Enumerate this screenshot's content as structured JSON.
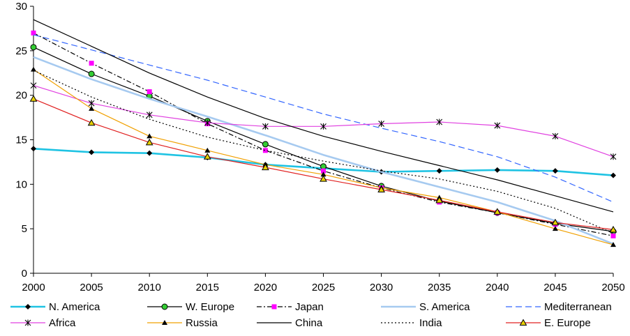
{
  "chart_data": {
    "type": "line",
    "title": "",
    "xlabel": "",
    "ylabel": "",
    "x": [
      2000,
      2005,
      2010,
      2015,
      2020,
      2025,
      2030,
      2035,
      2040,
      2045,
      2050
    ],
    "xlim": [
      2000,
      2050
    ],
    "ylim": [
      0,
      30
    ],
    "yticks": [
      0,
      5,
      10,
      15,
      20,
      25,
      30
    ],
    "grid": false,
    "legend_position": "bottom",
    "series": [
      {
        "name": "N. America",
        "color": "#1FC3E3",
        "dash": "solid",
        "marker": "diamond",
        "values": [
          14.0,
          13.6,
          13.5,
          13.0,
          12.2,
          11.8,
          11.4,
          11.5,
          11.6,
          11.5,
          11.0
        ]
      },
      {
        "name": "W. Europe",
        "color": "#000000",
        "markerFill": "#33CC33",
        "dash": "solid",
        "marker": "circle",
        "values": [
          25.4,
          22.4,
          19.9,
          17.1,
          14.5,
          12.0,
          9.8,
          8.1,
          6.8,
          5.6,
          4.7
        ]
      },
      {
        "name": "Japan",
        "color": "#000000",
        "markerFill": "#FF00FF",
        "dash": "dashdot",
        "marker": "square",
        "values": [
          27.0,
          23.6,
          20.4,
          16.8,
          13.8,
          11.5,
          9.6,
          8.0,
          6.8,
          5.5,
          4.2
        ]
      },
      {
        "name": "S. America",
        "color": "#A6CAF0",
        "dash": "solid",
        "marker": "none",
        "values": [
          24.3,
          21.8,
          19.6,
          17.6,
          15.5,
          13.3,
          11.4,
          9.7,
          8.0,
          5.9,
          3.3
        ]
      },
      {
        "name": "Mediterranean",
        "color": "#3366FF",
        "dash": "dashed",
        "marker": "none",
        "values": [
          26.8,
          25.1,
          23.4,
          21.7,
          19.8,
          17.9,
          16.3,
          14.8,
          13.1,
          10.8,
          8.0
        ]
      },
      {
        "name": "Africa",
        "color": "#E040E0",
        "dash": "solid",
        "marker": "star",
        "values": [
          21.1,
          19.1,
          17.8,
          16.9,
          16.5,
          16.5,
          16.8,
          17.0,
          16.6,
          15.4,
          13.1
        ]
      },
      {
        "name": "Russia",
        "color": "#F0A000",
        "dash": "solid",
        "marker": "triangle",
        "values": [
          22.9,
          18.5,
          15.4,
          13.8,
          12.2,
          11.1,
          9.6,
          8.5,
          6.9,
          5.0,
          3.2
        ]
      },
      {
        "name": "China",
        "color": "#000000",
        "dash": "solid",
        "marker": "none",
        "values": [
          28.5,
          25.5,
          22.5,
          19.8,
          17.4,
          15.4,
          13.7,
          12.1,
          10.5,
          8.7,
          6.9
        ]
      },
      {
        "name": "India",
        "color": "#000000",
        "dash": "dotted",
        "marker": "none",
        "values": [
          22.8,
          19.8,
          17.3,
          15.3,
          13.8,
          12.6,
          11.5,
          10.6,
          9.2,
          7.3,
          4.5
        ]
      },
      {
        "name": "E. Europe",
        "color": "#E02020",
        "markerFill": "#E8D000",
        "dash": "solid",
        "marker": "triangle-outline",
        "values": [
          19.6,
          16.9,
          14.7,
          13.1,
          11.9,
          10.6,
          9.4,
          8.2,
          6.9,
          5.7,
          4.9
        ]
      }
    ]
  }
}
